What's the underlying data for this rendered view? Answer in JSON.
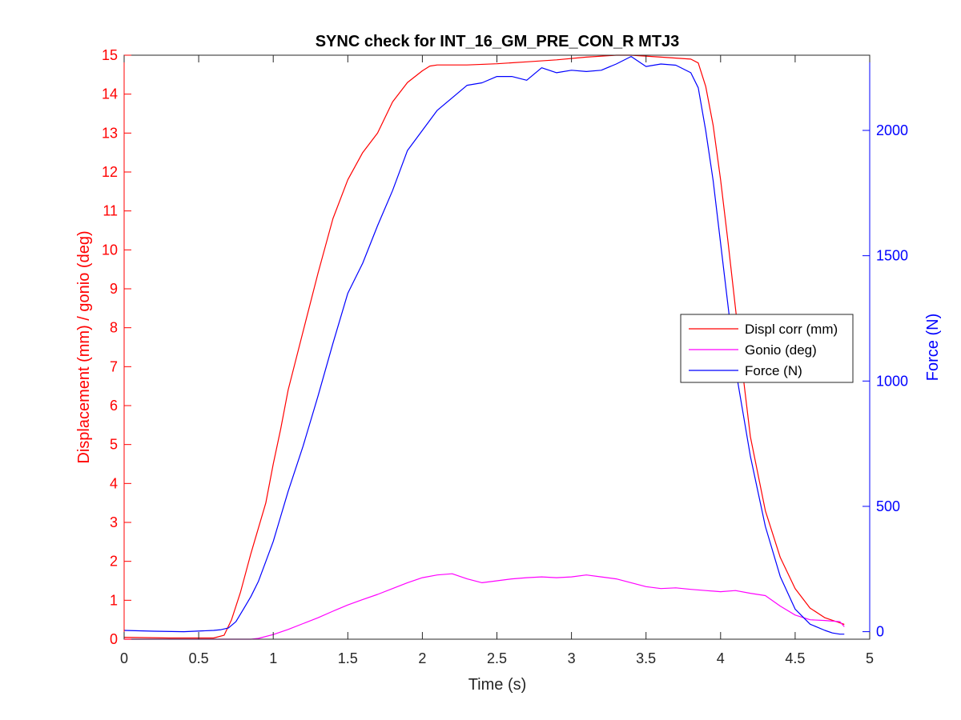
{
  "chart_data": {
    "type": "line",
    "title": "SYNC check for INT_16_GM_PRE_CON_R MTJ3",
    "xlabel": "Time (s)",
    "ylabel_left": "Displacement (mm) / gonio (deg)",
    "ylabel_right": "Force (N)",
    "xlim": [
      0,
      5
    ],
    "ylim_left": [
      0,
      15
    ],
    "ylim_right": [
      -30,
      2300
    ],
    "xticks": [
      "0",
      "0.5",
      "1",
      "1.5",
      "2",
      "2.5",
      "3",
      "3.5",
      "4",
      "4.5",
      "5"
    ],
    "yticks_left": [
      "0",
      "1",
      "2",
      "3",
      "4",
      "5",
      "6",
      "7",
      "8",
      "9",
      "10",
      "11",
      "12",
      "13",
      "14",
      "15"
    ],
    "yticks_right": [
      "0",
      "500",
      "1000",
      "1500",
      "2000"
    ],
    "grid": false,
    "legend_position": "right",
    "colors": {
      "left_axis": "#ff0000",
      "right_axis": "#0000ff",
      "frame": "#262626"
    },
    "series": [
      {
        "name": "Displ corr (mm)",
        "axis": "left",
        "color": "#ff0000",
        "x": [
          0,
          0.3,
          0.6,
          0.67,
          0.72,
          0.78,
          0.85,
          0.95,
          1.0,
          1.05,
          1.1,
          1.2,
          1.3,
          1.4,
          1.5,
          1.6,
          1.7,
          1.8,
          1.9,
          2.0,
          2.05,
          2.1,
          2.2,
          2.3,
          2.5,
          2.7,
          2.9,
          3.1,
          3.3,
          3.4,
          3.6,
          3.8,
          3.85,
          3.9,
          3.95,
          4.0,
          4.05,
          4.1,
          4.15,
          4.2,
          4.3,
          4.4,
          4.5,
          4.6,
          4.7,
          4.8,
          4.83
        ],
        "values": [
          0.05,
          0.03,
          0.03,
          0.1,
          0.5,
          1.2,
          2.2,
          3.5,
          4.5,
          5.4,
          6.4,
          7.9,
          9.4,
          10.8,
          11.8,
          12.5,
          13.0,
          13.8,
          14.3,
          14.6,
          14.72,
          14.75,
          14.75,
          14.75,
          14.78,
          14.83,
          14.88,
          14.95,
          15.0,
          15.0,
          14.95,
          14.9,
          14.8,
          14.2,
          13.2,
          11.8,
          10.2,
          8.5,
          6.8,
          5.2,
          3.3,
          2.1,
          1.3,
          0.8,
          0.55,
          0.42,
          0.38
        ]
      },
      {
        "name": "Gonio (deg)",
        "axis": "left",
        "color": "#ff00ff",
        "x": [
          0,
          0.5,
          0.85,
          0.9,
          1.0,
          1.1,
          1.2,
          1.3,
          1.4,
          1.5,
          1.6,
          1.7,
          1.8,
          1.9,
          2.0,
          2.1,
          2.2,
          2.3,
          2.4,
          2.5,
          2.6,
          2.7,
          2.8,
          2.9,
          3.0,
          3.1,
          3.2,
          3.3,
          3.4,
          3.5,
          3.6,
          3.7,
          3.8,
          3.9,
          4.0,
          4.1,
          4.2,
          4.3,
          4.4,
          4.5,
          4.6,
          4.7,
          4.8,
          4.83
        ],
        "values": [
          0.0,
          0.0,
          0.0,
          0.02,
          0.12,
          0.25,
          0.4,
          0.55,
          0.72,
          0.88,
          1.02,
          1.15,
          1.3,
          1.45,
          1.58,
          1.65,
          1.68,
          1.55,
          1.45,
          1.5,
          1.55,
          1.58,
          1.6,
          1.58,
          1.6,
          1.65,
          1.6,
          1.55,
          1.45,
          1.35,
          1.3,
          1.32,
          1.28,
          1.25,
          1.22,
          1.25,
          1.18,
          1.12,
          0.85,
          0.62,
          0.5,
          0.48,
          0.45,
          0.32
        ]
      },
      {
        "name": "Force (N)",
        "axis": "right",
        "color": "#0000ff",
        "x": [
          0,
          0.2,
          0.4,
          0.6,
          0.65,
          0.7,
          0.75,
          0.8,
          0.85,
          0.9,
          0.95,
          1.0,
          1.05,
          1.1,
          1.2,
          1.3,
          1.4,
          1.5,
          1.6,
          1.7,
          1.8,
          1.9,
          2.0,
          2.1,
          2.2,
          2.3,
          2.4,
          2.5,
          2.6,
          2.7,
          2.8,
          2.9,
          3.0,
          3.1,
          3.2,
          3.3,
          3.4,
          3.5,
          3.6,
          3.7,
          3.8,
          3.85,
          3.9,
          3.95,
          4.0,
          4.1,
          4.2,
          4.3,
          4.4,
          4.5,
          4.6,
          4.7,
          4.75,
          4.8,
          4.83
        ],
        "values": [
          5,
          2,
          0,
          5,
          8,
          15,
          40,
          90,
          140,
          200,
          280,
          360,
          460,
          560,
          740,
          940,
          1150,
          1350,
          1470,
          1620,
          1760,
          1920,
          2000,
          2080,
          2130,
          2180,
          2190,
          2215,
          2215,
          2200,
          2250,
          2230,
          2240,
          2235,
          2240,
          2265,
          2295,
          2255,
          2265,
          2260,
          2230,
          2170,
          2000,
          1800,
          1550,
          1050,
          700,
          420,
          220,
          90,
          30,
          5,
          -5,
          -10,
          -10
        ]
      }
    ]
  }
}
